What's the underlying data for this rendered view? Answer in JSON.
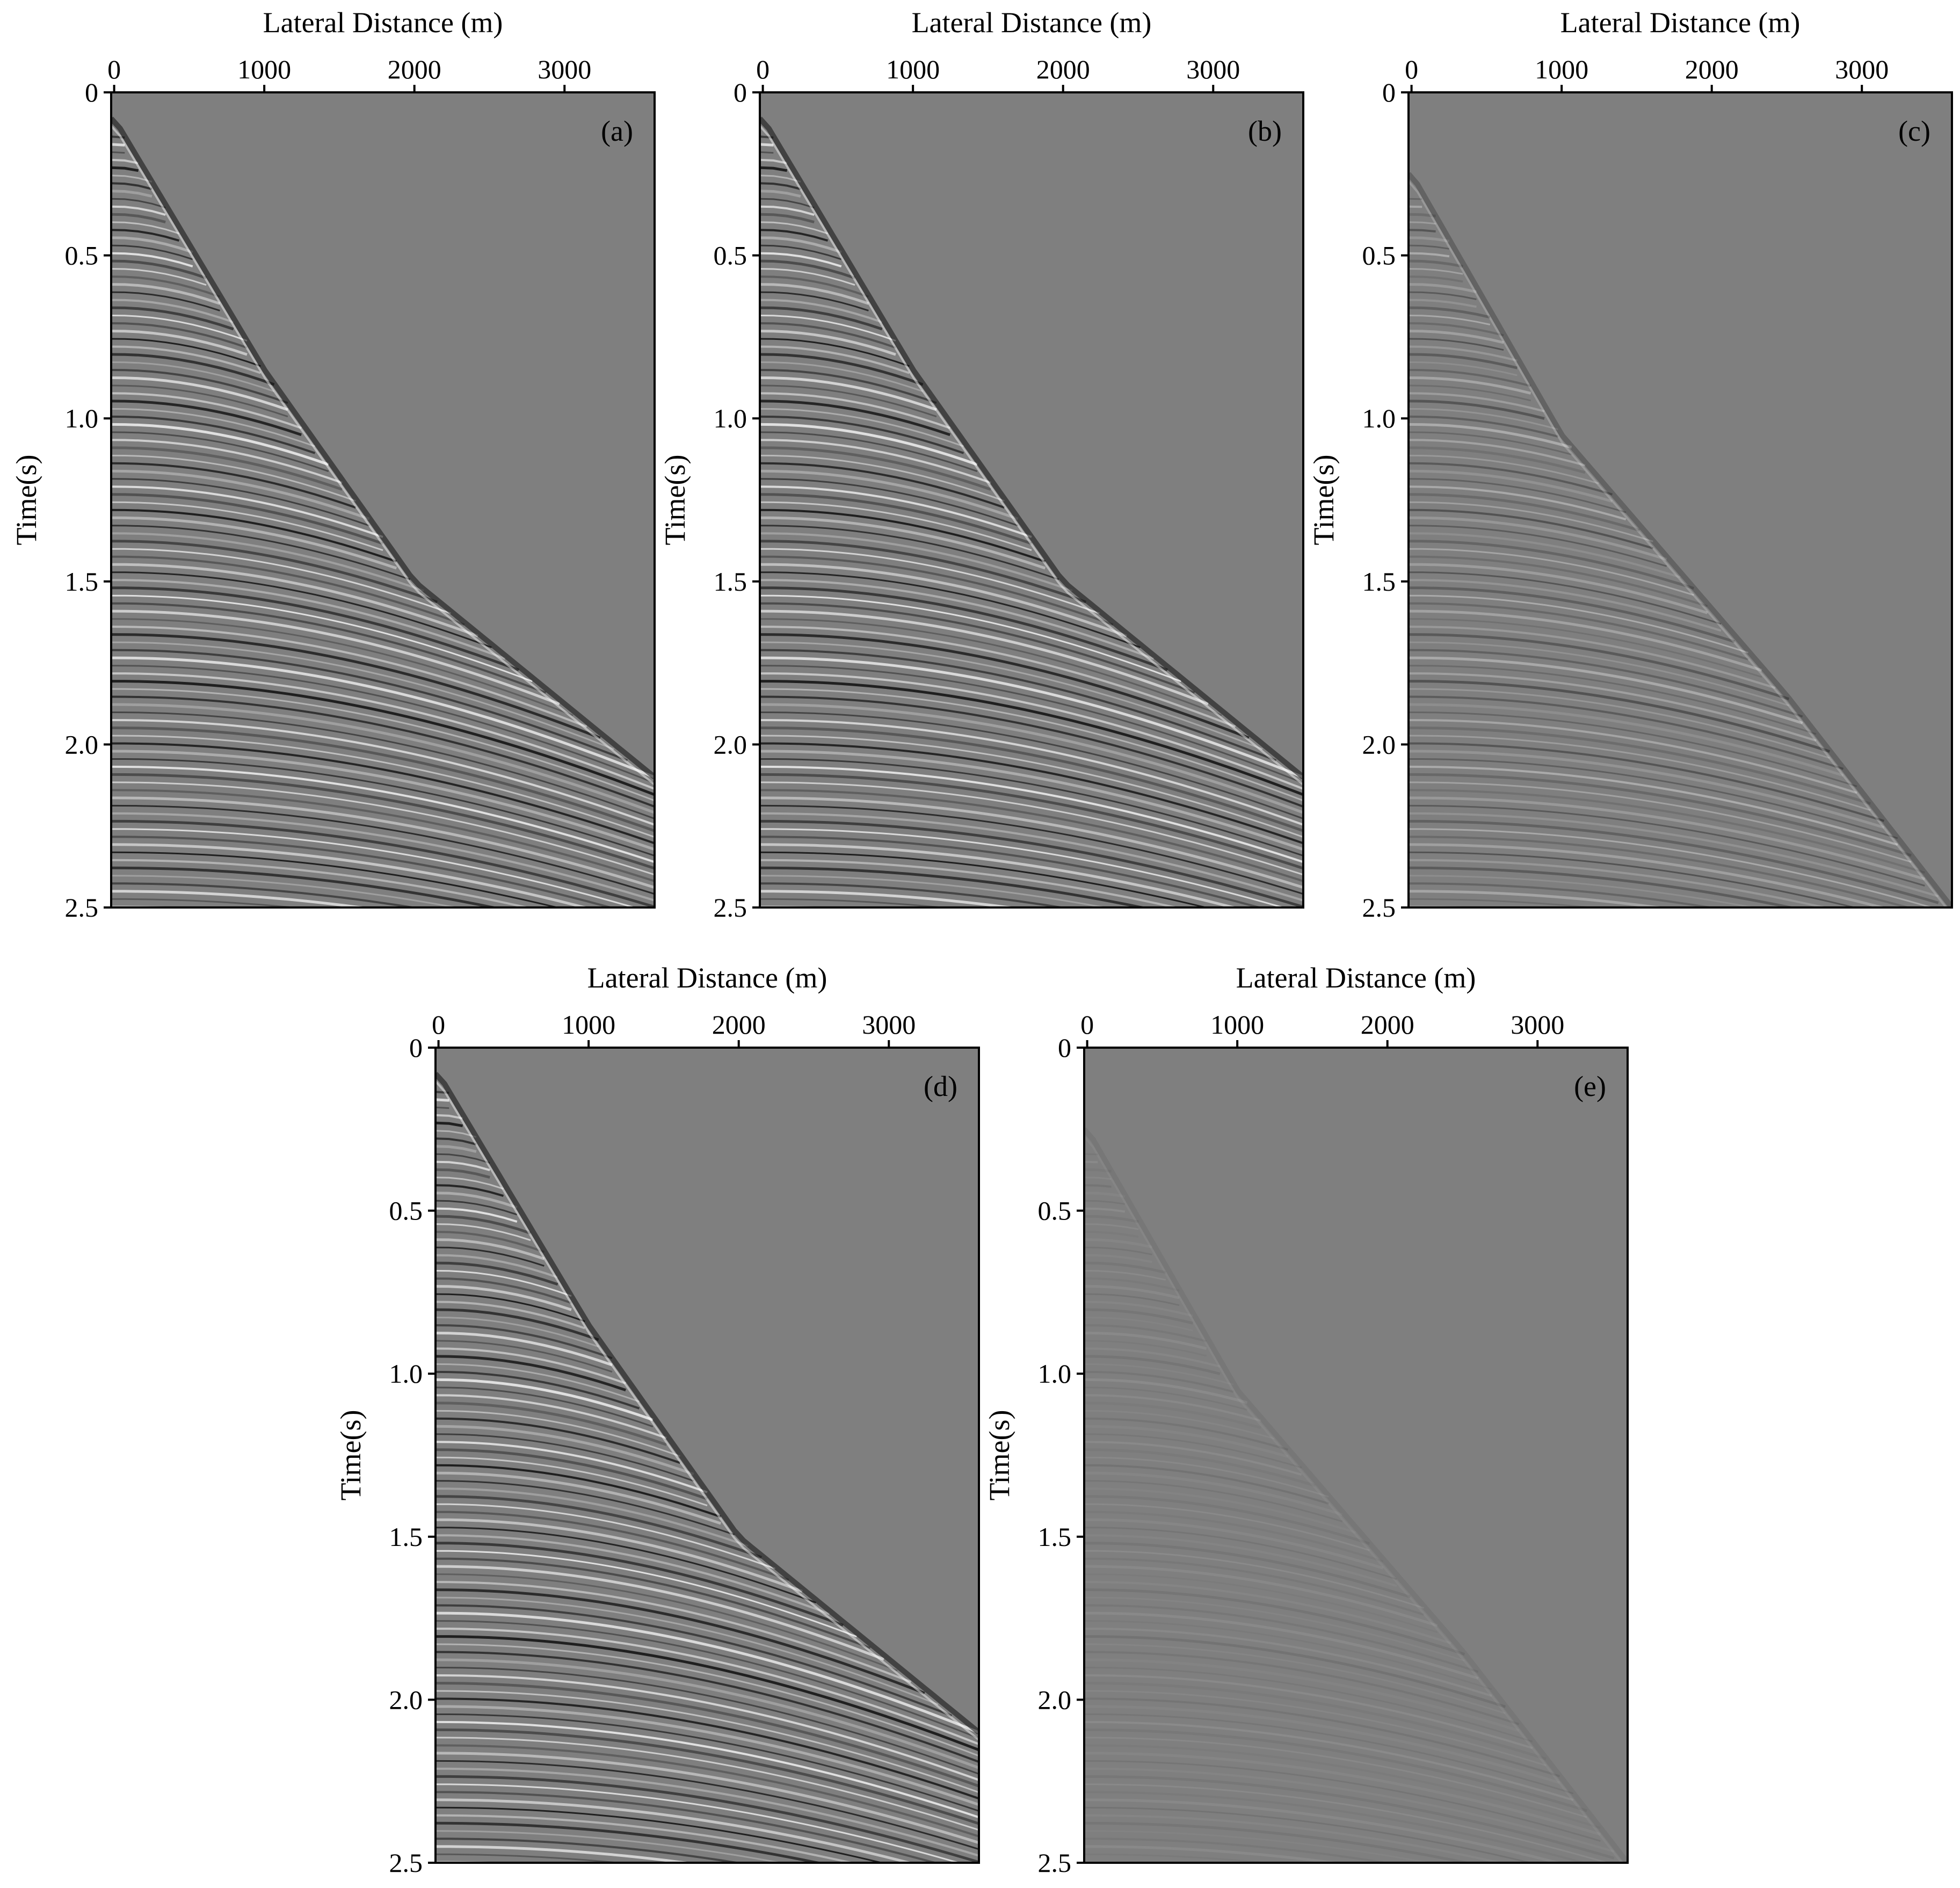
{
  "figure": {
    "xlabel": "Lateral Distance (m)",
    "ylabel": "Time(s)",
    "xticks": [
      0,
      1000,
      2000,
      3000
    ],
    "xtick_labels": [
      "0",
      "1000",
      "2000",
      "3000"
    ],
    "yticks": [
      0,
      0.5,
      1.0,
      1.5,
      2.0,
      2.5
    ],
    "ytick_labels": [
      "0",
      "0.5",
      "1.0",
      "1.5",
      "2.0",
      "2.5"
    ]
  },
  "chart_data": [
    {
      "type": "heatmap",
      "panel_label": "(a)",
      "xlabel": "Lateral Distance (m)",
      "ylabel": "Time(s)",
      "xlim": [
        -20,
        3600
      ],
      "ylim": [
        2.5,
        0
      ],
      "first_arrival_time_s": [
        [
          0,
          0.08
        ],
        [
          1000,
          0.85
        ],
        [
          2000,
          1.5
        ],
        [
          3600,
          2.1
        ]
      ],
      "amplitude": "strong",
      "colormap": "gray"
    },
    {
      "type": "heatmap",
      "panel_label": "(b)",
      "xlabel": "Lateral Distance (m)",
      "ylabel": "Time(s)",
      "xlim": [
        -20,
        3600
      ],
      "ylim": [
        2.5,
        0
      ],
      "first_arrival_time_s": [
        [
          0,
          0.08
        ],
        [
          1000,
          0.85
        ],
        [
          2000,
          1.5
        ],
        [
          3600,
          2.1
        ]
      ],
      "amplitude": "strong",
      "colormap": "gray"
    },
    {
      "type": "heatmap",
      "panel_label": "(c)",
      "xlabel": "Lateral Distance (m)",
      "ylabel": "Time(s)",
      "xlim": [
        -20,
        3600
      ],
      "ylim": [
        2.5,
        0
      ],
      "first_arrival_time_s": [
        [
          0,
          0.25
        ],
        [
          1000,
          1.05
        ],
        [
          2500,
          1.85
        ],
        [
          3600,
          2.5
        ]
      ],
      "amplitude": "weak",
      "colormap": "gray"
    },
    {
      "type": "heatmap",
      "panel_label": "(d)",
      "xlabel": "Lateral Distance (m)",
      "ylabel": "Time(s)",
      "xlim": [
        -20,
        3600
      ],
      "ylim": [
        2.5,
        0
      ],
      "first_arrival_time_s": [
        [
          0,
          0.08
        ],
        [
          1000,
          0.85
        ],
        [
          2000,
          1.5
        ],
        [
          3600,
          2.1
        ]
      ],
      "amplitude": "strong",
      "colormap": "gray"
    },
    {
      "type": "heatmap",
      "panel_label": "(e)",
      "xlabel": "Lateral Distance (m)",
      "ylabel": "Time(s)",
      "xlim": [
        -20,
        3600
      ],
      "ylim": [
        2.5,
        0
      ],
      "first_arrival_time_s": [
        [
          0,
          0.25
        ],
        [
          1000,
          1.05
        ],
        [
          2500,
          1.85
        ],
        [
          3600,
          2.5
        ]
      ],
      "amplitude": "very weak",
      "colormap": "gray"
    }
  ]
}
